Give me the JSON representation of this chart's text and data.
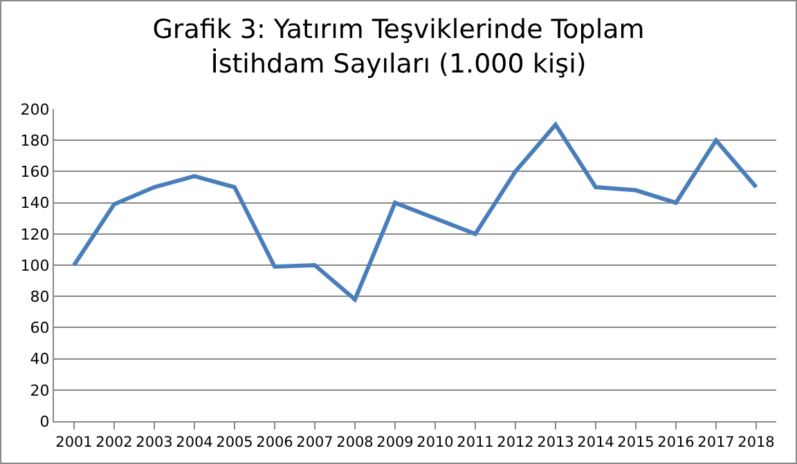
{
  "chart_data": {
    "type": "line",
    "title": "Grafik 3: Yatırım Teşviklerinde Toplam\nİstihdam Sayıları (1.000 kişi)",
    "categories": [
      "2001",
      "2002",
      "2003",
      "2004",
      "2005",
      "2006",
      "2007",
      "2008",
      "2009",
      "2010",
      "2011",
      "2012",
      "2013",
      "2014",
      "2015",
      "2016",
      "2017",
      "2018"
    ],
    "series": [
      {
        "color": "#4a7ebb",
        "values": [
          100,
          139,
          150,
          157,
          150,
          99,
          100,
          78,
          140,
          130,
          120,
          160,
          190,
          150,
          148,
          140,
          180,
          150
        ]
      }
    ],
    "ylim": [
      0,
      200
    ],
    "yticks": [
      0,
      20,
      40,
      60,
      80,
      100,
      120,
      140,
      160,
      180,
      200
    ],
    "grid": "y",
    "marker": "none",
    "line_style": "solid"
  }
}
